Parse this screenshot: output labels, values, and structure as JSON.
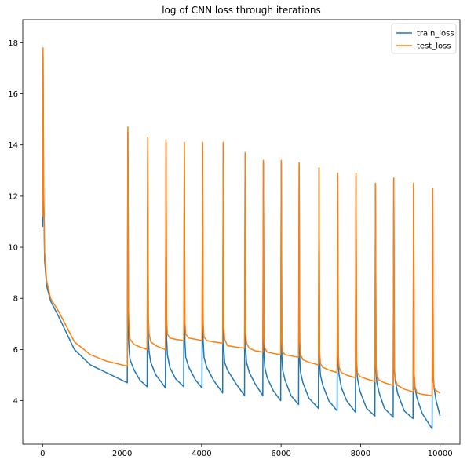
{
  "chart_data": {
    "type": "line",
    "title": "log of CNN loss through  iterations",
    "xlabel": "",
    "ylabel": "",
    "xlim": [
      -500,
      10500
    ],
    "ylim": [
      2.3,
      18.9
    ],
    "xticks": [
      0,
      2000,
      4000,
      6000,
      8000,
      10000
    ],
    "yticks": [
      4,
      6,
      8,
      10,
      12,
      14,
      16,
      18
    ],
    "grid": false,
    "legend_position": "top-right",
    "legend": [
      "train_loss",
      "test_loss"
    ],
    "colors": {
      "train_loss": "#1f77b4",
      "test_loss": "#ff7f0e"
    },
    "series": [
      {
        "name": "train_loss",
        "x": [
          0,
          10,
          25,
          50,
          100,
          200,
          400,
          800,
          1200,
          1600,
          2000,
          2130,
          2145,
          2160,
          2175,
          2200,
          2300,
          2450,
          2630,
          2645,
          2660,
          2680,
          2720,
          2850,
          3000,
          3090,
          3105,
          3120,
          3140,
          3200,
          3350,
          3550,
          3565,
          3580,
          3600,
          3680,
          3850,
          4010,
          4025,
          4040,
          4060,
          4130,
          4300,
          4530,
          4545,
          4560,
          4580,
          4650,
          4850,
          5080,
          5095,
          5110,
          5130,
          5200,
          5350,
          5540,
          5555,
          5570,
          5590,
          5650,
          5800,
          5990,
          6005,
          6020,
          6040,
          6100,
          6250,
          6440,
          6455,
          6470,
          6490,
          6550,
          6700,
          6940,
          6955,
          6970,
          6990,
          7050,
          7200,
          7410,
          7425,
          7440,
          7460,
          7520,
          7650,
          7870,
          7885,
          7900,
          7920,
          7980,
          8150,
          8360,
          8375,
          8390,
          8410,
          8470,
          8600,
          8820,
          8835,
          8850,
          8870,
          8930,
          9100,
          9320,
          9335,
          9350,
          9370,
          9420,
          9550,
          9800,
          9815,
          9830,
          9850,
          9900,
          10000
        ],
        "y": [
          10.8,
          17.5,
          12.0,
          9.5,
          8.5,
          7.9,
          7.3,
          6.0,
          5.4,
          5.1,
          4.8,
          4.7,
          14.5,
          6.5,
          6.0,
          5.6,
          5.2,
          4.8,
          4.55,
          14.2,
          6.4,
          5.9,
          5.5,
          5.0,
          4.7,
          4.5,
          14.1,
          6.4,
          5.8,
          5.3,
          4.85,
          4.55,
          14.0,
          6.3,
          5.7,
          5.3,
          4.8,
          4.5,
          14.0,
          6.3,
          5.7,
          5.3,
          4.8,
          4.3,
          14.0,
          6.0,
          5.5,
          5.2,
          4.7,
          4.2,
          13.6,
          6.0,
          5.5,
          5.1,
          4.65,
          4.2,
          13.3,
          5.8,
          5.3,
          4.9,
          4.4,
          4.0,
          13.3,
          5.7,
          5.2,
          4.8,
          4.2,
          3.85,
          13.2,
          5.6,
          5.1,
          4.7,
          4.1,
          3.7,
          13.1,
          5.5,
          5.0,
          4.6,
          4.0,
          3.6,
          12.9,
          5.4,
          5.0,
          4.5,
          4.0,
          3.55,
          12.8,
          5.3,
          4.9,
          4.4,
          3.7,
          3.4,
          12.5,
          5.2,
          4.7,
          4.3,
          3.7,
          3.35,
          12.7,
          5.2,
          4.8,
          4.3,
          3.6,
          3.3,
          12.5,
          5.0,
          4.5,
          4.1,
          3.5,
          2.9,
          12.3,
          5.0,
          4.5,
          4.0,
          3.4
        ]
      },
      {
        "name": "test_loss",
        "x": [
          0,
          10,
          25,
          50,
          100,
          200,
          400,
          800,
          1200,
          1600,
          2000,
          2130,
          2145,
          2160,
          2175,
          2200,
          2300,
          2450,
          2630,
          2645,
          2660,
          2680,
          2720,
          2850,
          3000,
          3090,
          3105,
          3120,
          3140,
          3200,
          3350,
          3550,
          3565,
          3580,
          3600,
          3680,
          3850,
          4010,
          4025,
          4040,
          4060,
          4130,
          4300,
          4530,
          4545,
          4560,
          4580,
          4650,
          4850,
          5080,
          5095,
          5110,
          5130,
          5200,
          5350,
          5540,
          5555,
          5570,
          5590,
          5650,
          5800,
          5990,
          6005,
          6020,
          6040,
          6100,
          6250,
          6440,
          6455,
          6470,
          6490,
          6550,
          6700,
          6940,
          6955,
          6970,
          6990,
          7050,
          7200,
          7410,
          7425,
          7440,
          7460,
          7520,
          7650,
          7870,
          7885,
          7900,
          7920,
          7980,
          8150,
          8360,
          8375,
          8390,
          8410,
          8470,
          8600,
          8820,
          8835,
          8850,
          8870,
          8930,
          9100,
          9320,
          9335,
          9350,
          9370,
          9420,
          9550,
          9800,
          9815,
          9830,
          9850,
          9900,
          10000
        ],
        "y": [
          11.2,
          17.8,
          12.5,
          9.8,
          8.7,
          8.0,
          7.5,
          6.3,
          5.8,
          5.55,
          5.4,
          5.35,
          14.7,
          7.6,
          6.9,
          6.4,
          6.2,
          6.1,
          6.0,
          14.3,
          7.3,
          6.6,
          6.3,
          6.15,
          6.05,
          6.0,
          14.2,
          7.2,
          6.6,
          6.45,
          6.4,
          6.35,
          14.1,
          7.1,
          6.6,
          6.45,
          6.4,
          6.35,
          14.1,
          7.0,
          6.5,
          6.35,
          6.3,
          6.25,
          14.1,
          6.9,
          6.4,
          6.15,
          6.1,
          6.05,
          13.7,
          6.7,
          6.25,
          6.05,
          5.95,
          5.9,
          13.4,
          6.5,
          6.05,
          5.9,
          5.85,
          5.8,
          13.4,
          6.3,
          5.9,
          5.8,
          5.75,
          5.7,
          13.3,
          6.3,
          5.8,
          5.6,
          5.5,
          5.4,
          13.1,
          5.9,
          5.45,
          5.3,
          5.2,
          5.1,
          12.9,
          5.8,
          5.3,
          5.1,
          5.0,
          4.9,
          12.9,
          5.6,
          5.1,
          4.95,
          4.85,
          4.75,
          12.5,
          5.4,
          4.95,
          4.8,
          4.7,
          4.6,
          12.7,
          5.3,
          4.85,
          4.6,
          4.45,
          4.35,
          12.5,
          5.0,
          4.55,
          4.3,
          4.25,
          4.2,
          12.3,
          4.9,
          4.5,
          4.4,
          4.3
        ]
      }
    ]
  }
}
